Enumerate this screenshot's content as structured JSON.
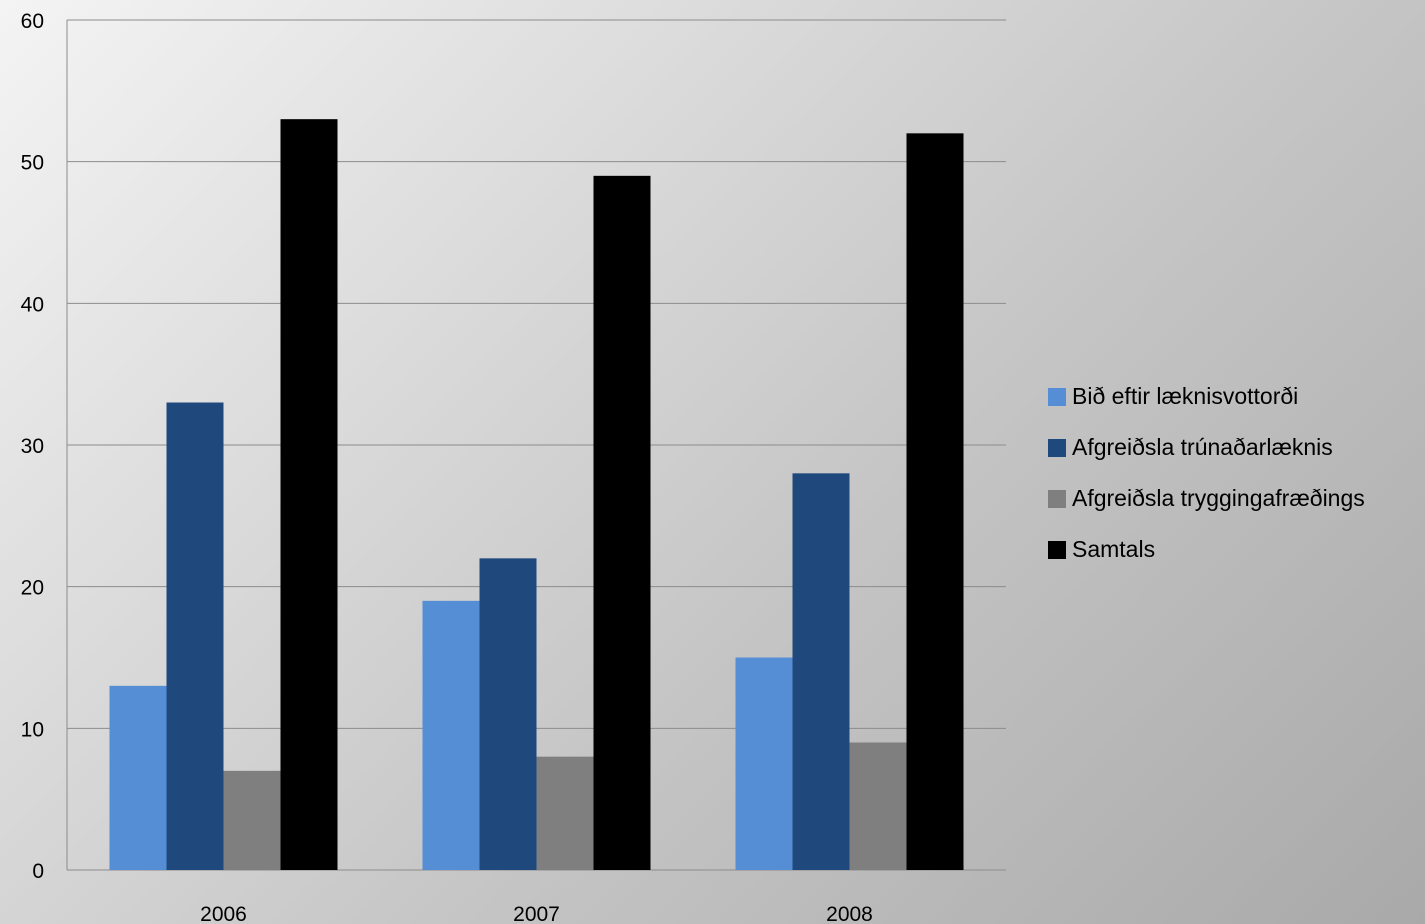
{
  "chart_data": {
    "type": "bar",
    "title": "",
    "xlabel": "",
    "ylabel": "",
    "categories": [
      "2006",
      "2007",
      "2008"
    ],
    "ylim": [
      0,
      60
    ],
    "yticks": [
      0,
      10,
      20,
      30,
      40,
      50,
      60
    ],
    "grid": true,
    "legend_position": "right",
    "series": [
      {
        "name": "Bið eftir læknisvottorði",
        "values": [
          13,
          19,
          15
        ],
        "color": "#558ed5"
      },
      {
        "name": "Afgreiðsla trúnaðarlæknis",
        "values": [
          33,
          22,
          28
        ],
        "color": "#1f497d"
      },
      {
        "name": "Afgreiðsla tryggingafræðings",
        "values": [
          7,
          8,
          9
        ],
        "color": "#7f7f7f"
      },
      {
        "name": "Samtals",
        "values": [
          53,
          49,
          52
        ],
        "color": "#000000"
      }
    ]
  }
}
